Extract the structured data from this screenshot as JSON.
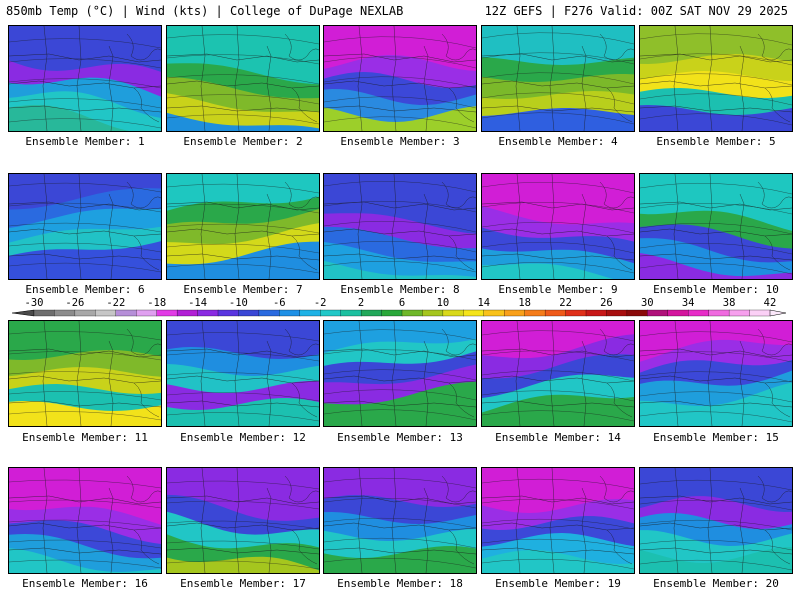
{
  "header": {
    "left": "850mb Temp (°C) | Wind (kts) | College of DuPage NEXLAB",
    "right": "12Z GEFS | F276 Valid: 00Z SAT NOV 29 2025"
  },
  "caption_prefix": "Ensemble Member: ",
  "members": [
    {
      "id": 1,
      "caption": "Ensemble Member: 1",
      "palette": [
        "#3b47d6",
        "#8a2be2",
        "#1f9edc",
        "#21c6c6",
        "#28b89a"
      ]
    },
    {
      "id": 2,
      "caption": "Ensemble Member: 2",
      "palette": [
        "#1cc3b0",
        "#2aa84a",
        "#7fb92a",
        "#c9d21a",
        "#1e8fdc"
      ]
    },
    {
      "id": 3,
      "caption": "Ensemble Member: 3",
      "palette": [
        "#d11ed6",
        "#9a2ee6",
        "#3c48d8",
        "#2a8ae0",
        "#9ccf2a"
      ]
    },
    {
      "id": 4,
      "caption": "Ensemble Member: 4",
      "palette": [
        "#1fbfc2",
        "#2aa84a",
        "#7bb92a",
        "#b9cf1c",
        "#2f5fe0"
      ]
    },
    {
      "id": 5,
      "caption": "Ensemble Member: 5",
      "palette": [
        "#8fbf2a",
        "#c9d21a",
        "#f2e21a",
        "#1cc0b0",
        "#3b47d6"
      ]
    },
    {
      "id": 6,
      "caption": "Ensemble Member: 6",
      "palette": [
        "#3b47d6",
        "#2a6ae0",
        "#1ea0e0",
        "#21c2c6",
        "#3550dc"
      ]
    },
    {
      "id": 7,
      "caption": "Ensemble Member: 7",
      "palette": [
        "#1ec7c0",
        "#2aa84a",
        "#7fb92a",
        "#d3d91a",
        "#1f8ee0"
      ]
    },
    {
      "id": 8,
      "caption": "Ensemble Member: 8",
      "palette": [
        "#3b47d6",
        "#8a2be2",
        "#2a6ae0",
        "#1ea0e0",
        "#21c2c6"
      ]
    },
    {
      "id": 9,
      "caption": "Ensemble Member: 9",
      "palette": [
        "#d11ed6",
        "#9a2ee6",
        "#3c48d8",
        "#1f9edc",
        "#21c6c6"
      ]
    },
    {
      "id": 10,
      "caption": "Ensemble Member: 10",
      "palette": [
        "#1ec7c0",
        "#2aa84a",
        "#3b47d6",
        "#1f8ee0",
        "#8a2be2"
      ]
    },
    {
      "id": 11,
      "caption": "Ensemble Member: 11",
      "palette": [
        "#2aa84a",
        "#7fb92a",
        "#c9d21a",
        "#1cc0b0",
        "#f2e21a"
      ]
    },
    {
      "id": 12,
      "caption": "Ensemble Member: 12",
      "palette": [
        "#3b47d6",
        "#1f8ee0",
        "#21c2c6",
        "#8a2be2",
        "#1cc0b0"
      ]
    },
    {
      "id": 13,
      "caption": "Ensemble Member: 13",
      "palette": [
        "#1ea0e0",
        "#21c6c6",
        "#3b47d6",
        "#8a2be2",
        "#2aa84a"
      ]
    },
    {
      "id": 14,
      "caption": "Ensemble Member: 14",
      "palette": [
        "#d11ed6",
        "#8a2be2",
        "#3b47d6",
        "#21c6c6",
        "#2aa84a"
      ]
    },
    {
      "id": 15,
      "caption": "Ensemble Member: 15",
      "palette": [
        "#d11ed6",
        "#9a2ee6",
        "#3c48d8",
        "#1f9edc",
        "#21c6c6"
      ]
    },
    {
      "id": 16,
      "caption": "Ensemble Member: 16",
      "palette": [
        "#d11ed6",
        "#9a2ee6",
        "#3c48d8",
        "#1f9edc",
        "#21c6c6"
      ]
    },
    {
      "id": 17,
      "caption": "Ensemble Member: 17",
      "palette": [
        "#8a2be2",
        "#3b47d6",
        "#21c6c6",
        "#2aa84a",
        "#a5c61e"
      ]
    },
    {
      "id": 18,
      "caption": "Ensemble Member: 18",
      "palette": [
        "#8a2be2",
        "#3b47d6",
        "#1f8ee0",
        "#21c6c6",
        "#2aa84a"
      ]
    },
    {
      "id": 19,
      "caption": "Ensemble Member: 19",
      "palette": [
        "#d11ed6",
        "#9a2ee6",
        "#3c48d8",
        "#1fb0e0",
        "#21c6c6"
      ]
    },
    {
      "id": 20,
      "caption": "Ensemble Member: 20",
      "palette": [
        "#3b47d6",
        "#8a2be2",
        "#1f8ee0",
        "#21c6c6",
        "#1cc0b0"
      ]
    }
  ],
  "colorbar": {
    "labels": [
      "-30",
      "-26",
      "-22",
      "-18",
      "-14",
      "-10",
      "-6",
      "-2",
      "2",
      "6",
      "10",
      "14",
      "18",
      "22",
      "26",
      "30",
      "34",
      "38",
      "42"
    ],
    "colors": [
      "#6e6e6e",
      "#8c8c8c",
      "#a8a8a8",
      "#c6c6c6",
      "#b68fd8",
      "#e0a0f0",
      "#e23be6",
      "#b21fd6",
      "#8a2be2",
      "#5a35e0",
      "#3b47d6",
      "#2a6ae0",
      "#1e90e6",
      "#1eb2e6",
      "#21c8c8",
      "#1cc0a0",
      "#22a85a",
      "#2aa83a",
      "#6fb82a",
      "#a5c61e",
      "#d9d91a",
      "#f5e41a",
      "#f9c21a",
      "#f9a01a",
      "#f57c1a",
      "#ef5a1a",
      "#e0301a",
      "#c81818",
      "#a80f0f",
      "#8a0a0a",
      "#b0107a",
      "#d4149e",
      "#e82cc8",
      "#f06ae0",
      "#f7a0ee",
      "#fbd0f6"
    ]
  }
}
